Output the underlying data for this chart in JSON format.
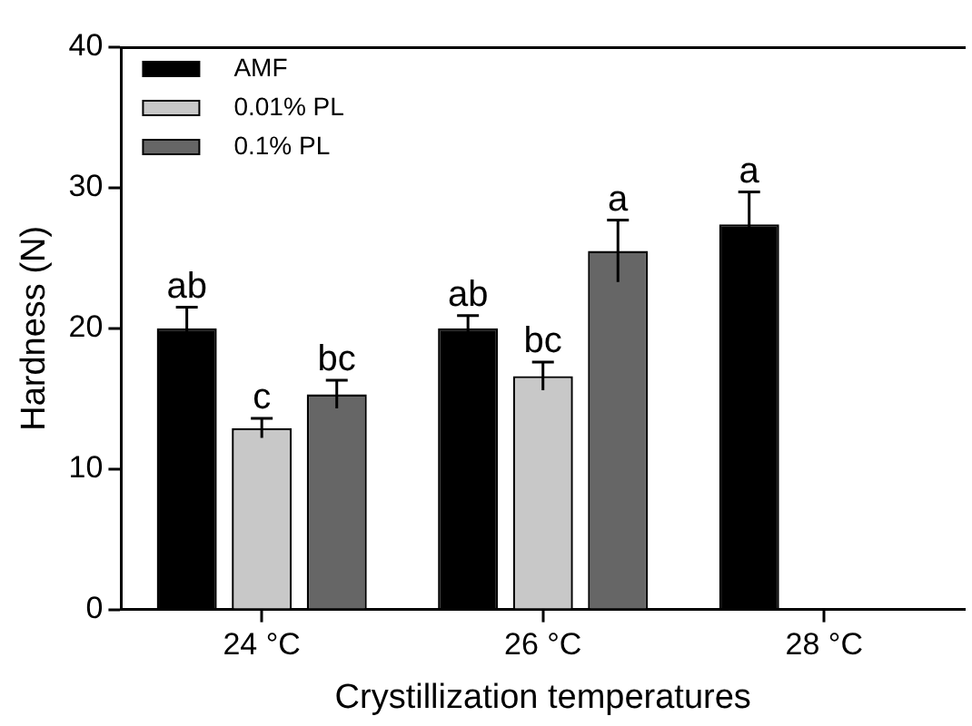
{
  "chart_data": {
    "type": "bar",
    "xlabel": "Crystillization temperatures",
    "ylabel": "Hardness (N)",
    "categories": [
      "24 °C",
      "26 °C",
      "28 °C"
    ],
    "series": [
      {
        "name": "AMF",
        "color": "#000000",
        "values": [
          20.0,
          20.0,
          27.4
        ],
        "errors": [
          1.5,
          0.9,
          2.3
        ],
        "value_labels": [
          "ab",
          "ab",
          "a"
        ]
      },
      {
        "name": "0.01% PL",
        "color": "#c8c8c8",
        "values": [
          12.9,
          16.6,
          null
        ],
        "errors": [
          0.7,
          1.0,
          null
        ],
        "value_labels": [
          "c",
          "bc",
          null
        ]
      },
      {
        "name": "0.1% PL",
        "color": "#666666",
        "values": [
          15.3,
          25.5,
          null
        ],
        "errors": [
          1.0,
          2.2,
          null
        ],
        "value_labels": [
          "bc",
          "a",
          null
        ]
      }
    ],
    "ylim": [
      0,
      40
    ],
    "yticks": [
      0,
      10,
      20,
      30,
      40
    ],
    "grid": false,
    "legend": "top left"
  }
}
